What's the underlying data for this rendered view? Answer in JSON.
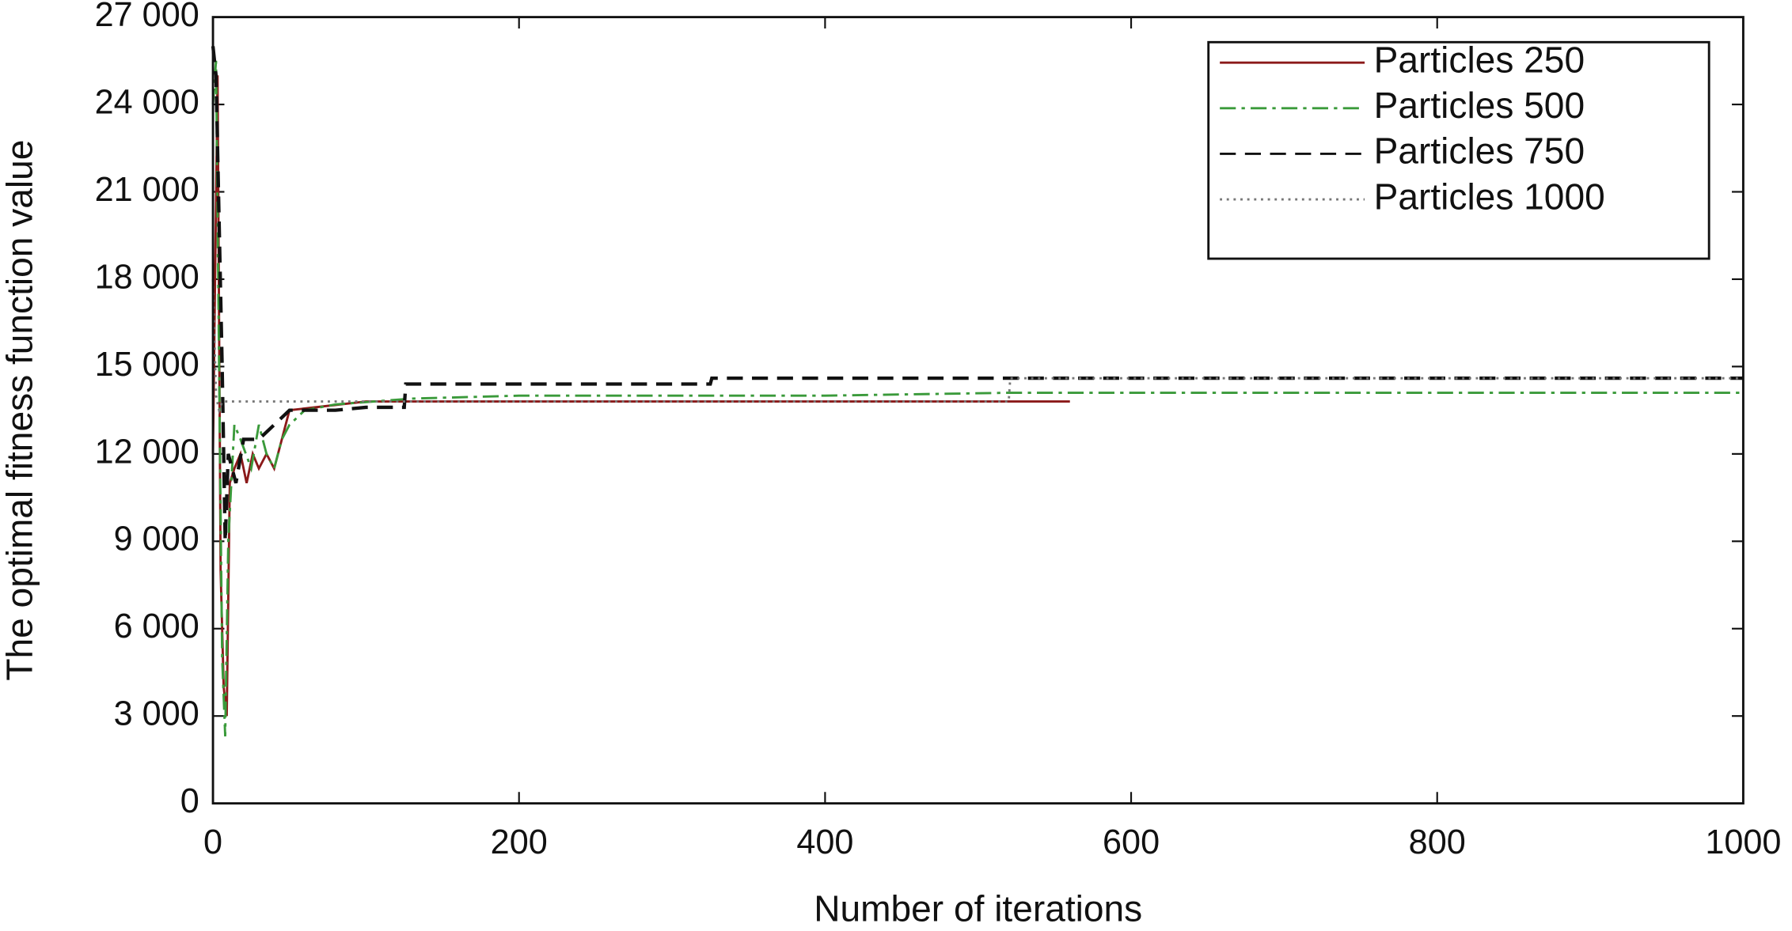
{
  "chart_data": {
    "type": "line",
    "xlabel": "Number of iterations",
    "ylabel": "The optimal fitness function value",
    "xlim": [
      0,
      1000
    ],
    "ylim": [
      0,
      27000
    ],
    "xticks": [
      0,
      200,
      400,
      600,
      800,
      1000
    ],
    "yticks": [
      0,
      {
        "value": 3000,
        "label": "3 000"
      },
      {
        "value": 6000,
        "label": "6 000"
      },
      {
        "value": 9000,
        "label": "9 000"
      },
      {
        "value": 12000,
        "label": "12 000"
      },
      {
        "value": 15000,
        "label": "15 000"
      },
      {
        "value": 18000,
        "label": "18 000"
      },
      {
        "value": 21000,
        "label": "21 000"
      },
      {
        "value": 24000,
        "label": "24 000"
      },
      {
        "value": 27000,
        "label": "27 000"
      }
    ],
    "grid": false,
    "legend": "upper right",
    "series": [
      {
        "name": "Particles 250",
        "color": "#8b1a1a",
        "style": "solid",
        "x": [
          0,
          3,
          5,
          7,
          9,
          11,
          14,
          18,
          22,
          26,
          30,
          35,
          40,
          45,
          50,
          100,
          200,
          300,
          400,
          500,
          560
        ],
        "values": [
          12000,
          25000,
          8000,
          4000,
          3000,
          11000,
          11500,
          12000,
          11000,
          12000,
          11500,
          12000,
          11500,
          12500,
          13500,
          13800,
          13800,
          13800,
          13800,
          13800,
          13800
        ]
      },
      {
        "name": "Particles 500",
        "color": "#3a9a3a",
        "style": "dashdot",
        "x": [
          0,
          2,
          4,
          6,
          8,
          10,
          14,
          18,
          25,
          30,
          35,
          40,
          45,
          50,
          60,
          80,
          130,
          200,
          300,
          400,
          520,
          600,
          800,
          1000
        ],
        "values": [
          24000,
          25500,
          15000,
          5000,
          2300,
          9000,
          13000,
          12500,
          11500,
          13000,
          12000,
          11500,
          12500,
          13000,
          13500,
          13700,
          13900,
          14000,
          14000,
          14000,
          14100,
          14100,
          14100,
          14100
        ]
      },
      {
        "name": "Particles 750",
        "color": "#111111",
        "style": "dashed",
        "x": [
          0,
          2,
          4,
          6,
          8,
          10,
          15,
          20,
          30,
          40,
          50,
          60,
          80,
          100,
          125,
          126,
          200,
          325,
          326,
          400,
          600,
          800,
          1000
        ],
        "values": [
          26000,
          25000,
          20000,
          15000,
          9000,
          12000,
          11000,
          12500,
          12500,
          13000,
          13500,
          13500,
          13500,
          13600,
          13600,
          14400,
          14400,
          14400,
          14600,
          14600,
          14600,
          14600,
          14600
        ]
      },
      {
        "name": "Particles 1000",
        "color": "#777777",
        "style": "dotted",
        "x": [
          0,
          2,
          4,
          6,
          8,
          10,
          15,
          30,
          60,
          100,
          200,
          400,
          520,
          521,
          600,
          800,
          1000
        ],
        "values": [
          18000,
          14000,
          13500,
          13800,
          13800,
          13800,
          13800,
          13800,
          13800,
          13800,
          13800,
          13800,
          13800,
          14600,
          14600,
          14600,
          14600
        ]
      }
    ]
  }
}
